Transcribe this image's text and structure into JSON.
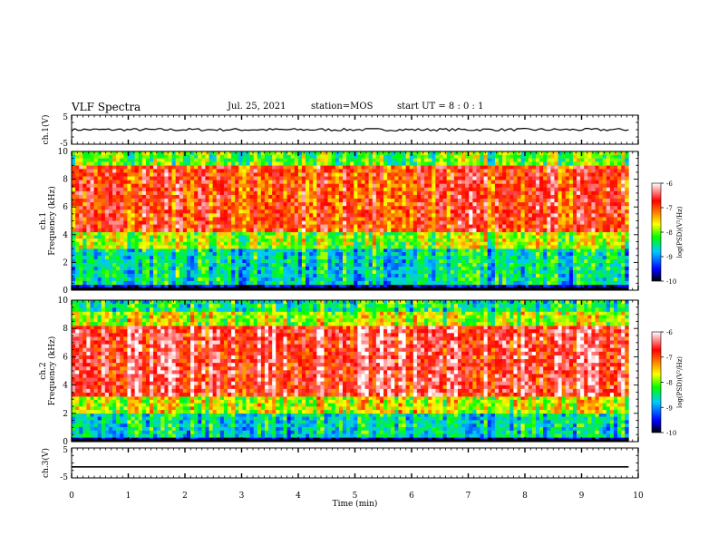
{
  "header": {
    "title": "VLF Spectra",
    "date": "Jul. 25, 2021",
    "station": "station=MOS",
    "start": "start UT =  8 : 0 : 1"
  },
  "chart_data": [
    {
      "type": "line",
      "panel": "ch1-waveform",
      "ylabel": "ch.1(V)",
      "ylim": [
        -5,
        5
      ],
      "yticks": [
        "5",
        "-5"
      ],
      "xlim": [
        0,
        10
      ],
      "series": [
        {
          "x": [
            0,
            9.83
          ],
          "y": [
            0,
            0
          ]
        }
      ]
    },
    {
      "type": "heatmap",
      "panel": "ch1-spectrogram",
      "ylabel": "ch.1 Frequency (kHz)",
      "ylim": [
        0,
        10
      ],
      "yticks": [
        "0",
        "2",
        "4",
        "6",
        "8",
        "10"
      ],
      "xlim": [
        0,
        10
      ],
      "data_xmax": 9.83,
      "colorbar": {
        "label": "log(PSD)(V²/Hz)",
        "range": [
          -10,
          -6
        ],
        "ticks": [
          "-6",
          "-7",
          "-8",
          "-9",
          "-10"
        ]
      },
      "bands": [
        {
          "f0": 0,
          "f1": 0.4,
          "level": -9.6
        },
        {
          "f0": 0.4,
          "f1": 3.0,
          "level": -8.6
        },
        {
          "f0": 3.0,
          "f1": 4.2,
          "level": -7.9
        },
        {
          "f0": 4.2,
          "f1": 9.0,
          "level": -6.9
        },
        {
          "f0": 9.0,
          "f1": 10,
          "level": -8.1
        }
      ]
    },
    {
      "type": "heatmap",
      "panel": "ch2-spectrogram",
      "ylabel": "ch.2 Frequency (kHz)",
      "ylim": [
        0,
        10
      ],
      "yticks": [
        "0",
        "2",
        "4",
        "6",
        "8",
        "10"
      ],
      "xlim": [
        0,
        10
      ],
      "data_xmax": 9.83,
      "colorbar": {
        "label": "log(PSD)(V²/Hz)",
        "range": [
          -10,
          -6
        ],
        "ticks": [
          "-6",
          "-7",
          "-8",
          "-9",
          "-10"
        ]
      },
      "bands": [
        {
          "f0": 0,
          "f1": 0.3,
          "level": -9.7
        },
        {
          "f0": 0.3,
          "f1": 2.0,
          "level": -8.6
        },
        {
          "f0": 2.0,
          "f1": 3.2,
          "level": -7.7
        },
        {
          "f0": 3.2,
          "f1": 8.2,
          "level": -6.6
        },
        {
          "f0": 8.2,
          "f1": 9.2,
          "level": -7.8
        },
        {
          "f0": 9.2,
          "f1": 10,
          "level": -8.4
        }
      ]
    },
    {
      "type": "line",
      "panel": "ch3-waveform",
      "ylabel": "ch.3(V)",
      "ylim": [
        -5,
        5
      ],
      "yticks": [
        "5",
        "-5"
      ],
      "xlim": [
        0,
        10
      ],
      "xlabel": "Time (min)",
      "xticks": [
        "0",
        "1",
        "2",
        "3",
        "4",
        "5",
        "6",
        "7",
        "8",
        "9",
        "10"
      ],
      "series": [
        {
          "x": [
            0,
            9.83
          ],
          "y": [
            -1.3,
            -1.3
          ]
        }
      ]
    }
  ],
  "colors": {
    "scale": [
      "#000000",
      "#0000ff",
      "#00c8ff",
      "#00ff00",
      "#ffff00",
      "#ff8000",
      "#ff0000",
      "#ffffff"
    ]
  }
}
